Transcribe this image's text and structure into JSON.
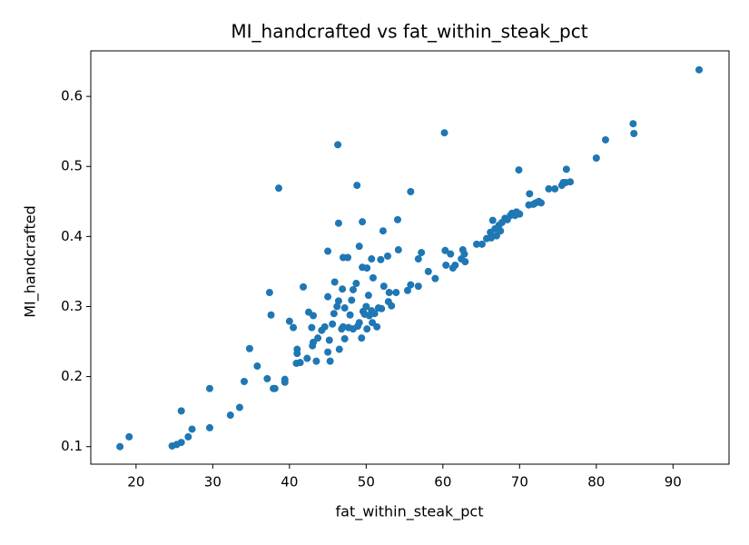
{
  "chart_data": {
    "type": "scatter",
    "title": "MI_handcrafted vs fat_within_steak_pct",
    "x_label": "fat_within_steak_pct",
    "y_label": "MI_handcrafted",
    "color": "#1f77b4",
    "xlim": [
      14.1,
      97.3
    ],
    "ylim": [
      0.075,
      0.665
    ],
    "xticks": [
      20,
      30,
      40,
      50,
      60,
      70,
      80,
      90
    ],
    "yticks": [
      0.1,
      0.2,
      0.3,
      0.4,
      0.5,
      0.6
    ],
    "x": [
      17.9,
      19.1,
      24.7,
      25.3,
      25.9,
      26.8,
      27.3,
      25.9,
      29.6,
      29.6,
      32.3,
      33.5,
      34.1,
      34.8,
      35.8,
      37.1,
      37.4,
      37.6,
      37.9,
      38.1,
      38.6,
      39.4,
      39.4,
      40.0,
      40.5,
      41.0,
      41.0,
      40.9,
      41.4,
      41.8,
      42.3,
      42.5,
      42.9,
      43.1,
      43.1,
      43.5,
      43.0,
      43.7,
      44.2,
      44.6,
      45.0,
      45.0,
      45.2,
      45.0,
      45.3,
      45.6,
      45.8,
      45.9,
      46.3,
      46.4,
      46.2,
      46.4,
      46.5,
      46.8,
      46.9,
      47.0,
      47.0,
      47.2,
      47.2,
      47.6,
      47.7,
      47.9,
      48.1,
      48.3,
      48.3,
      48.7,
      48.8,
      48.9,
      49.1,
      49.1,
      49.4,
      49.5,
      49.5,
      49.6,
      49.8,
      50.1,
      50.0,
      50.1,
      50.3,
      50.4,
      50.7,
      50.7,
      50.8,
      50.9,
      51.1,
      51.4,
      51.6,
      51.9,
      52.0,
      52.2,
      52.3,
      52.8,
      52.9,
      53.0,
      53.3,
      53.9,
      54.1,
      54.2,
      55.4,
      55.8,
      55.8,
      56.8,
      56.8,
      57.2,
      58.1,
      59.0,
      60.2,
      60.3,
      60.4,
      61.0,
      61.3,
      61.6,
      62.4,
      62.6,
      62.8,
      62.9,
      64.4,
      65.1,
      65.7,
      66.2,
      66.3,
      66.5,
      66.8,
      67.0,
      67.3,
      67.5,
      67.7,
      68.1,
      68.4,
      68.8,
      69.0,
      69.4,
      69.6,
      69.9,
      70.0,
      71.2,
      71.3,
      71.8,
      72.1,
      72.5,
      72.8,
      73.8,
      74.6,
      75.5,
      75.7,
      76.0,
      76.1,
      76.6,
      80.0,
      81.2,
      84.8,
      84.9,
      93.4
    ],
    "values": [
      0.1,
      0.114,
      0.101,
      0.103,
      0.106,
      0.114,
      0.125,
      0.151,
      0.183,
      0.127,
      0.145,
      0.156,
      0.193,
      0.24,
      0.215,
      0.197,
      0.32,
      0.288,
      0.183,
      0.183,
      0.469,
      0.196,
      0.192,
      0.279,
      0.27,
      0.239,
      0.233,
      0.219,
      0.22,
      0.328,
      0.226,
      0.292,
      0.27,
      0.287,
      0.249,
      0.222,
      0.244,
      0.255,
      0.266,
      0.271,
      0.314,
      0.379,
      0.252,
      0.235,
      0.222,
      0.275,
      0.29,
      0.335,
      0.531,
      0.419,
      0.3,
      0.308,
      0.239,
      0.268,
      0.325,
      0.37,
      0.271,
      0.298,
      0.254,
      0.37,
      0.27,
      0.288,
      0.309,
      0.268,
      0.324,
      0.333,
      0.473,
      0.272,
      0.386,
      0.277,
      0.255,
      0.356,
      0.421,
      0.293,
      0.289,
      0.355,
      0.3,
      0.268,
      0.316,
      0.287,
      0.368,
      0.294,
      0.277,
      0.341,
      0.29,
      0.271,
      0.298,
      0.367,
      0.297,
      0.408,
      0.329,
      0.372,
      0.307,
      0.32,
      0.301,
      0.32,
      0.424,
      0.381,
      0.323,
      0.464,
      0.331,
      0.368,
      0.329,
      0.377,
      0.35,
      0.34,
      0.548,
      0.38,
      0.359,
      0.375,
      0.355,
      0.359,
      0.368,
      0.381,
      0.375,
      0.364,
      0.389,
      0.389,
      0.397,
      0.406,
      0.398,
      0.423,
      0.411,
      0.401,
      0.416,
      0.408,
      0.42,
      0.426,
      0.424,
      0.43,
      0.433,
      0.43,
      0.435,
      0.495,
      0.432,
      0.445,
      0.461,
      0.446,
      0.448,
      0.45,
      0.448,
      0.468,
      0.468,
      0.473,
      0.477,
      0.477,
      0.496,
      0.478,
      0.512,
      0.538,
      0.561,
      0.547,
      0.638
    ]
  }
}
